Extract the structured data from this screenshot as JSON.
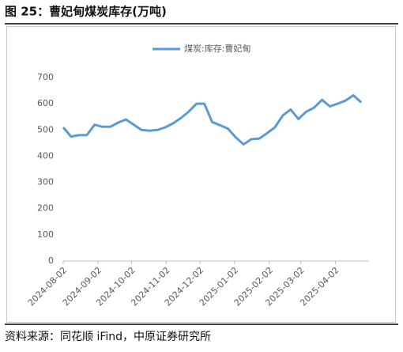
{
  "header": {
    "title": "图 25：曹妃甸煤炭库存(万吨)"
  },
  "chart_data": {
    "type": "line",
    "x": [
      "2024-08-02",
      "2024-08-09",
      "2024-08-16",
      "2024-08-23",
      "2024-08-30",
      "2024-09-06",
      "2024-09-13",
      "2024-09-20",
      "2024-09-27",
      "2024-10-04",
      "2024-10-11",
      "2024-10-18",
      "2024-10-25",
      "2024-11-01",
      "2024-11-08",
      "2024-11-15",
      "2024-11-22",
      "2024-11-29",
      "2024-12-06",
      "2024-12-13",
      "2024-12-20",
      "2024-12-27",
      "2025-01-03",
      "2025-01-10",
      "2025-01-17",
      "2025-01-24",
      "2025-01-31",
      "2025-02-07",
      "2025-02-14",
      "2025-02-21",
      "2025-02-28",
      "2025-03-07",
      "2025-03-14",
      "2025-03-21",
      "2025-03-28",
      "2025-04-04",
      "2025-04-11",
      "2025-04-18",
      "2025-04-25"
    ],
    "series": [
      {
        "name": "煤炭:库存:曹妃甸",
        "color": "#5b9bd5",
        "values": [
          510,
          475,
          480,
          480,
          520,
          512,
          512,
          528,
          540,
          520,
          500,
          497,
          500,
          510,
          525,
          545,
          570,
          600,
          600,
          530,
          518,
          505,
          472,
          445,
          465,
          467,
          488,
          510,
          555,
          578,
          542,
          570,
          585,
          615,
          590,
          600,
          612,
          632,
          605
        ]
      }
    ],
    "xlim": [
      "2024-08-02",
      "2025-05-02"
    ],
    "xticks": [
      "2024-08-02",
      "2024-09-02",
      "2024-10-02",
      "2024-11-02",
      "2024-12-02",
      "2025-01-02",
      "2025-02-02",
      "2025-03-02",
      "2025-04-02"
    ],
    "ylim": [
      0,
      700
    ],
    "yticks": [
      0,
      100,
      200,
      300,
      400,
      500,
      600,
      700
    ],
    "legend": "top"
  },
  "footer": {
    "source": "资料来源：同花顺 iFind，中原证券研究所"
  }
}
